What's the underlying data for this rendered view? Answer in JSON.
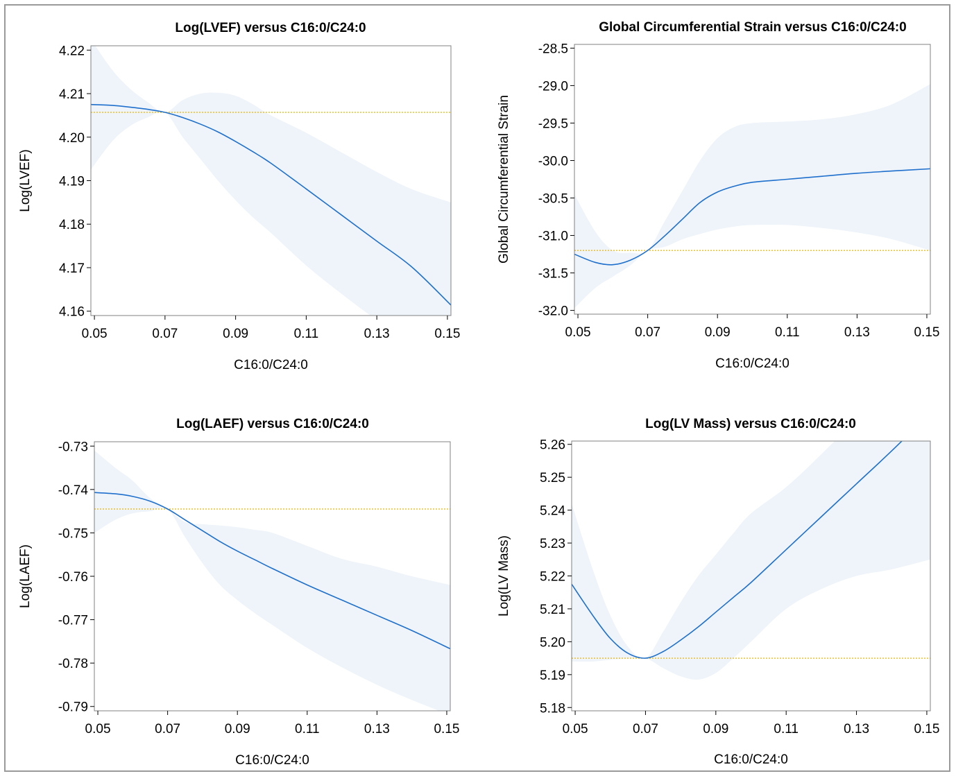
{
  "colors": {
    "curve": "#1e6fcc",
    "band": "#eef4fa",
    "reference": "#e8b400",
    "frame": "#9a9a9a",
    "axis": "#808080"
  },
  "chart_data": [
    {
      "type": "line",
      "title": "Log(LVEF) versus C16:0/C24:0",
      "xlabel": "C16:0/C24:0",
      "ylabel": "Log(LVEF)",
      "xlim": [
        0.049,
        0.151
      ],
      "ylim": [
        4.159,
        4.221
      ],
      "xticks": [
        0.05,
        0.07,
        0.09,
        0.11,
        0.13,
        0.15
      ],
      "xtick_labels": [
        "0.05",
        "0.07",
        "0.09",
        "0.11",
        "0.13",
        "0.15"
      ],
      "yticks": [
        4.16,
        4.17,
        4.18,
        4.19,
        4.2,
        4.21,
        4.22
      ],
      "ytick_labels": [
        "4.16",
        "4.17",
        "4.18",
        "4.19",
        "4.20",
        "4.21",
        "4.22"
      ],
      "reference_y": 4.2057,
      "x": [
        0.049,
        0.055,
        0.06,
        0.065,
        0.07,
        0.075,
        0.08,
        0.085,
        0.09,
        0.095,
        0.1,
        0.11,
        0.12,
        0.13,
        0.14,
        0.151
      ],
      "estimate": [
        4.2075,
        4.2073,
        4.2069,
        4.2064,
        4.2057,
        4.2045,
        4.203,
        4.2012,
        4.199,
        4.1966,
        4.194,
        4.1881,
        4.1821,
        4.1761,
        4.1701,
        4.1614
      ],
      "lower": [
        4.1925,
        4.199,
        4.2025,
        4.2045,
        4.2057,
        4.2,
        4.195,
        4.19,
        4.1855,
        4.1815,
        4.178,
        4.1705,
        4.164,
        4.158,
        4.153,
        4.148
      ],
      "upper": [
        4.2225,
        4.2155,
        4.2112,
        4.2081,
        4.2057,
        4.2085,
        4.21,
        4.2102,
        4.2095,
        4.2075,
        4.205,
        4.201,
        4.1965,
        4.192,
        4.188,
        4.185
      ]
    },
    {
      "type": "line",
      "title": "Global Circumferential Strain versus C16:0/C24:0",
      "xlabel": "C16:0/C24:0",
      "ylabel": "Global Circumferential Strain",
      "xlim": [
        0.049,
        0.151
      ],
      "ylim": [
        -32.05,
        -28.45
      ],
      "xticks": [
        0.05,
        0.07,
        0.09,
        0.11,
        0.13,
        0.15
      ],
      "xtick_labels": [
        "0.05",
        "0.07",
        "0.09",
        "0.11",
        "0.13",
        "0.15"
      ],
      "yticks": [
        -32.0,
        -31.5,
        -31.0,
        -30.5,
        -30.0,
        -29.5,
        -29.0,
        -28.5
      ],
      "ytick_labels": [
        "-32.0",
        "-31.5",
        "-31.0",
        "-30.5",
        "-30.0",
        "-29.5",
        "-29.0",
        "-28.5"
      ],
      "reference_y": -31.2,
      "x": [
        0.049,
        0.055,
        0.06,
        0.065,
        0.07,
        0.075,
        0.08,
        0.085,
        0.09,
        0.095,
        0.1,
        0.11,
        0.12,
        0.13,
        0.14,
        0.151
      ],
      "estimate": [
        -31.25,
        -31.36,
        -31.39,
        -31.33,
        -31.2,
        -31.0,
        -30.78,
        -30.56,
        -30.42,
        -30.34,
        -30.29,
        -30.25,
        -30.21,
        -30.17,
        -30.14,
        -30.11
      ],
      "lower": [
        -31.97,
        -31.7,
        -31.55,
        -31.4,
        -31.2,
        -31.15,
        -31.05,
        -30.98,
        -30.92,
        -30.88,
        -30.86,
        -30.86,
        -30.9,
        -30.96,
        -31.05,
        -31.2
      ],
      "upper": [
        -30.45,
        -30.95,
        -31.2,
        -31.23,
        -31.2,
        -30.8,
        -30.4,
        -30.0,
        -29.7,
        -29.55,
        -29.5,
        -29.48,
        -29.45,
        -29.38,
        -29.25,
        -28.98
      ]
    },
    {
      "type": "line",
      "title": "Log(LAEF) versus C16:0/C24:0",
      "xlabel": "C16:0/C24:0",
      "ylabel": "Log(LAEF)",
      "xlim": [
        0.049,
        0.151
      ],
      "ylim": [
        -0.791,
        -0.729
      ],
      "xticks": [
        0.05,
        0.07,
        0.09,
        0.11,
        0.13,
        0.15
      ],
      "xtick_labels": [
        "0.05",
        "0.07",
        "0.09",
        "0.11",
        "0.13",
        "0.15"
      ],
      "yticks": [
        -0.79,
        -0.78,
        -0.77,
        -0.76,
        -0.75,
        -0.74,
        -0.73
      ],
      "ytick_labels": [
        "-0.79",
        "-0.78",
        "-0.77",
        "-0.76",
        "-0.75",
        "-0.74",
        "-0.73"
      ],
      "reference_y": -0.7445,
      "x": [
        0.049,
        0.055,
        0.06,
        0.065,
        0.07,
        0.075,
        0.08,
        0.085,
        0.09,
        0.095,
        0.1,
        0.11,
        0.12,
        0.13,
        0.14,
        0.151
      ],
      "estimate": [
        -0.7407,
        -0.741,
        -0.7416,
        -0.7427,
        -0.7445,
        -0.747,
        -0.7495,
        -0.752,
        -0.7542,
        -0.7562,
        -0.7582,
        -0.762,
        -0.7655,
        -0.769,
        -0.7725,
        -0.7767
      ],
      "lower": [
        -0.75,
        -0.747,
        -0.7455,
        -0.745,
        -0.7445,
        -0.751,
        -0.757,
        -0.762,
        -0.7655,
        -0.7685,
        -0.7712,
        -0.7765,
        -0.781,
        -0.785,
        -0.7885,
        -0.792
      ],
      "upper": [
        -0.731,
        -0.735,
        -0.738,
        -0.742,
        -0.7445,
        -0.7475,
        -0.748,
        -0.7483,
        -0.7487,
        -0.7493,
        -0.75,
        -0.753,
        -0.756,
        -0.7578,
        -0.76,
        -0.762
      ]
    },
    {
      "type": "line",
      "title": "Log(LV Mass) versus C16:0/C24:0",
      "xlabel": "C16:0/C24:0",
      "ylabel": "Log(LV Mass)",
      "xlim": [
        0.049,
        0.151
      ],
      "ylim": [
        5.179,
        5.261
      ],
      "xticks": [
        0.05,
        0.07,
        0.09,
        0.11,
        0.13,
        0.15
      ],
      "xtick_labels": [
        "0.05",
        "0.07",
        "0.09",
        "0.11",
        "0.13",
        "0.15"
      ],
      "yticks": [
        5.18,
        5.19,
        5.2,
        5.21,
        5.22,
        5.23,
        5.24,
        5.25,
        5.26
      ],
      "ytick_labels": [
        "5.18",
        "5.19",
        "5.20",
        "5.21",
        "5.22",
        "5.23",
        "5.24",
        "5.25",
        "5.26"
      ],
      "reference_y": 5.195,
      "x": [
        0.049,
        0.055,
        0.06,
        0.065,
        0.07,
        0.075,
        0.08,
        0.085,
        0.09,
        0.095,
        0.1,
        0.11,
        0.12,
        0.13,
        0.14,
        0.151
      ],
      "estimate": [
        5.2175,
        5.208,
        5.201,
        5.1965,
        5.195,
        5.197,
        5.2005,
        5.2045,
        5.209,
        5.2135,
        5.218,
        5.228,
        5.238,
        5.248,
        5.258,
        5.2695
      ],
      "lower": [
        5.194,
        5.194,
        5.1945,
        5.1948,
        5.195,
        5.192,
        5.1895,
        5.1885,
        5.1905,
        5.195,
        5.2,
        5.21,
        5.216,
        5.22,
        5.222,
        5.225
      ],
      "upper": [
        5.242,
        5.222,
        5.208,
        5.1985,
        5.195,
        5.203,
        5.212,
        5.22,
        5.2265,
        5.233,
        5.239,
        5.247,
        5.257,
        5.268,
        5.281,
        5.298
      ]
    }
  ]
}
